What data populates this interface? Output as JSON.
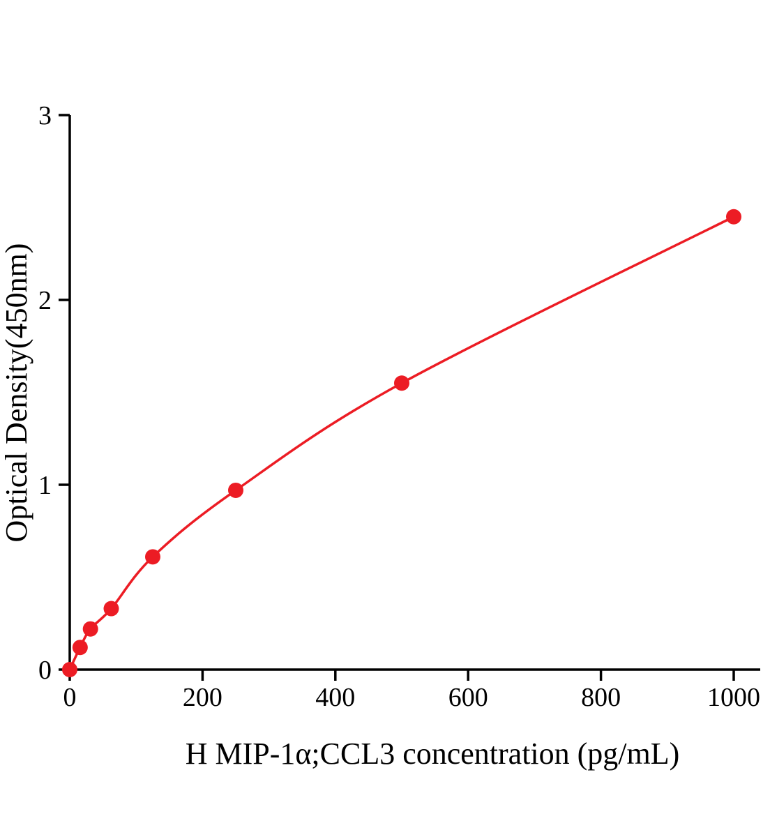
{
  "chart_data": {
    "type": "line",
    "title": "",
    "xlabel": "H MIP-1α;CCL3 concentration (pg/mL)",
    "ylabel": "Optical Density(450nm)",
    "x": [
      0,
      15.6,
      31.2,
      62.5,
      125,
      250,
      500,
      1000
    ],
    "y": [
      0.0,
      0.12,
      0.22,
      0.33,
      0.61,
      0.97,
      1.55,
      2.45
    ],
    "xlim": [
      0,
      1000
    ],
    "ylim": [
      0,
      3
    ],
    "xticks": [
      0,
      200,
      400,
      600,
      800,
      1000
    ],
    "yticks": [
      0,
      1,
      2,
      3
    ],
    "line_color": "#ec1c24",
    "marker": "circle",
    "marker_color": "#ec1c24",
    "axis_color": "#000000",
    "grid": false,
    "legend": null
  }
}
